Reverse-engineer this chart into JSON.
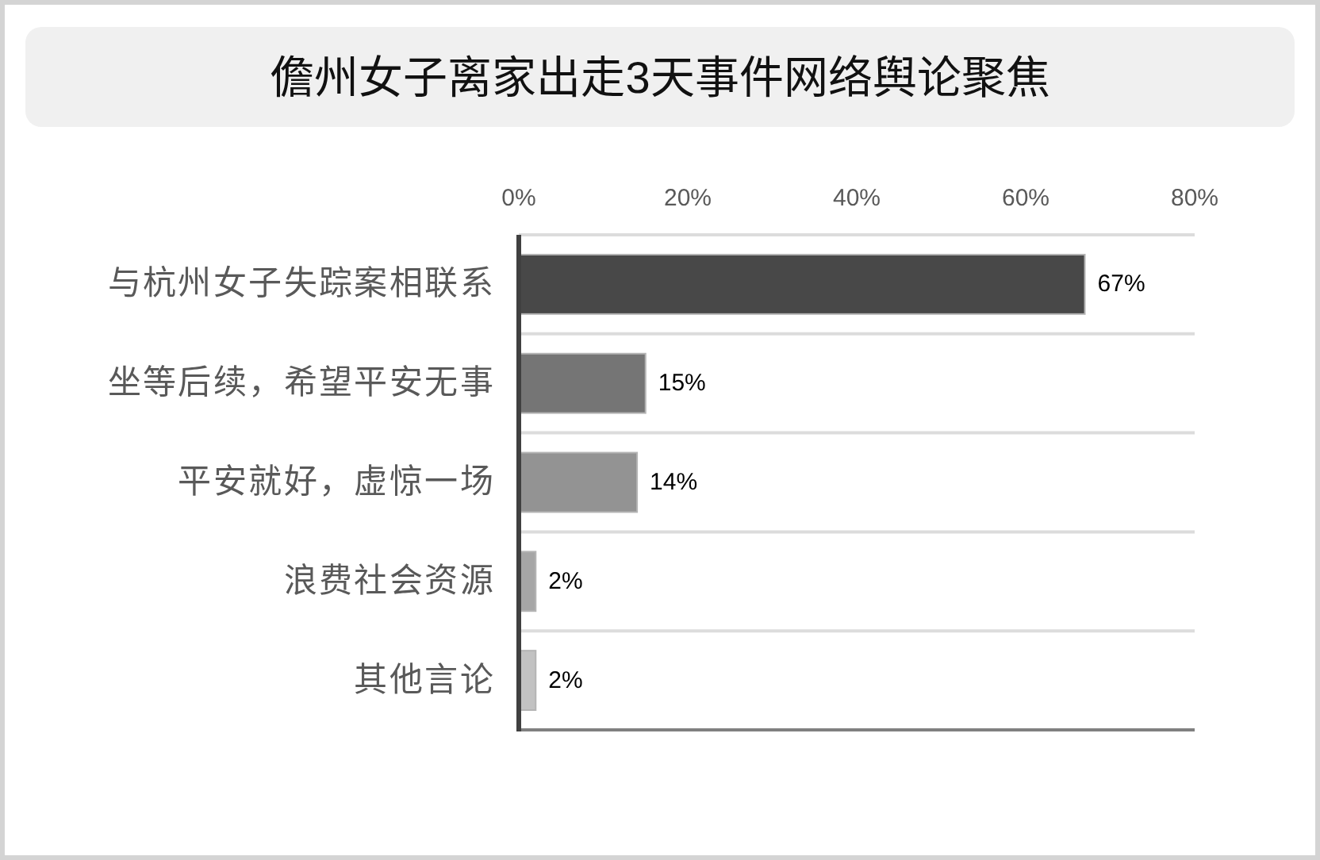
{
  "chart_data": {
    "type": "bar",
    "orientation": "horizontal",
    "title": "儋州女子离家出走3天事件网络舆论聚焦",
    "categories": [
      "与杭州女子失踪案相联系",
      "坐等后续，希望平安无事",
      "平安就好，虚惊一场",
      "浪费社会资源",
      "其他言论"
    ],
    "values": [
      67,
      15,
      14,
      2,
      2
    ],
    "colors": [
      "#484848",
      "#757575",
      "#939393",
      "#a6a6a6",
      "#c2c2c2"
    ],
    "value_labels": [
      "67%",
      "15%",
      "14%",
      "2%",
      "2%"
    ],
    "xlim": [
      0,
      80
    ],
    "xticks": [
      {
        "value": 0,
        "label": "0%"
      },
      {
        "value": 20,
        "label": "20%"
      },
      {
        "value": 40,
        "label": "40%"
      },
      {
        "value": 60,
        "label": "60%"
      },
      {
        "value": 80,
        "label": "80%"
      }
    ],
    "grid": "y"
  }
}
